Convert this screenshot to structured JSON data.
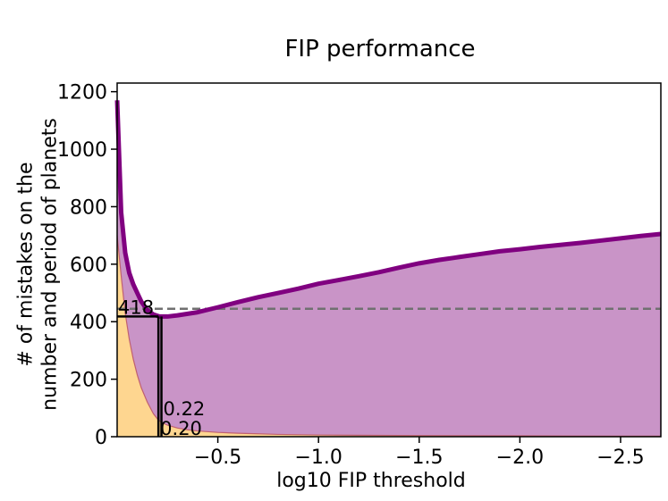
{
  "chart_data": {
    "type": "area",
    "title": "FIP performance",
    "xlabel": "log10 FIP threshold",
    "ylabel_lines": [
      "# of mistakes on the",
      "number and period of planets"
    ],
    "x_inverted": true,
    "xlim": [
      0.0,
      -2.7
    ],
    "ylim": [
      0,
      1230
    ],
    "xticks": [
      -0.5,
      -1.0,
      -1.5,
      -2.0,
      -2.5
    ],
    "xtick_labels": [
      "−0.5",
      "−1.0",
      "−1.5",
      "−2.0",
      "−2.5"
    ],
    "yticks": [
      0,
      200,
      400,
      600,
      800,
      1000,
      1200
    ],
    "ytick_labels": [
      "0",
      "200",
      "400",
      "600",
      "800",
      "1000",
      "1200"
    ],
    "colors": {
      "total_line": "#800080",
      "total_fill": "#c994c7",
      "lower_fill": "#fed690",
      "lower_edge": "#c06070",
      "reference": "#707070",
      "marker": "#000000"
    },
    "series": [
      {
        "role": "total",
        "x": [
          0.0,
          -0.02,
          -0.04,
          -0.06,
          -0.08,
          -0.1,
          -0.12,
          -0.15,
          -0.18,
          -0.21,
          -0.25,
          -0.3,
          -0.4,
          -0.5,
          -0.6,
          -0.7,
          -0.8,
          -0.9,
          -1.0,
          -1.1,
          -1.2,
          -1.3,
          -1.4,
          -1.5,
          -1.6,
          -1.7,
          -1.8,
          -1.9,
          -2.0,
          -2.1,
          -2.2,
          -2.3,
          -2.4,
          -2.5,
          -2.6,
          -2.7
        ],
        "y": [
          1170,
          780,
          640,
          570,
          530,
          500,
          470,
          440,
          425,
          418,
          418,
          422,
          433,
          450,
          468,
          485,
          500,
          515,
          532,
          545,
          558,
          572,
          588,
          603,
          615,
          625,
          635,
          645,
          652,
          660,
          667,
          674,
          682,
          690,
          698,
          705
        ]
      },
      {
        "role": "lower",
        "x": [
          0.0,
          -0.02,
          -0.04,
          -0.06,
          -0.08,
          -0.1,
          -0.12,
          -0.15,
          -0.18,
          -0.2,
          -0.22,
          -0.25,
          -0.3,
          -0.35,
          -0.4,
          -0.5,
          -0.6,
          -0.7,
          -0.8,
          -1.0,
          -1.2,
          -1.5,
          -2.0,
          -2.5,
          -2.7
        ],
        "y": [
          700,
          560,
          430,
          340,
          270,
          215,
          170,
          120,
          80,
          62,
          50,
          40,
          30,
          24,
          20,
          15,
          12,
          10,
          8,
          6,
          5,
          4,
          3,
          2,
          2
        ]
      }
    ],
    "reference_line": {
      "y": 445,
      "style": "dashed"
    },
    "annotations": [
      {
        "kind": "hline-label",
        "y": 418,
        "x_from": 0.0,
        "x_to": -0.205,
        "label": "418"
      },
      {
        "kind": "vline",
        "x": -0.205,
        "label": "0.20"
      },
      {
        "kind": "vline",
        "x": -0.22,
        "label": "0.22"
      }
    ]
  }
}
